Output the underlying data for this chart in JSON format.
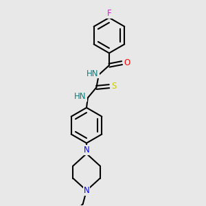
{
  "bg_color": "#e8e8e8",
  "bond_color": "#000000",
  "atom_colors": {
    "F": "#ff00ff",
    "O": "#ff0000",
    "S": "#cccc00",
    "N": "#0000ff",
    "NH": "#008080"
  },
  "line_width": 1.5,
  "font_size": 8.5
}
